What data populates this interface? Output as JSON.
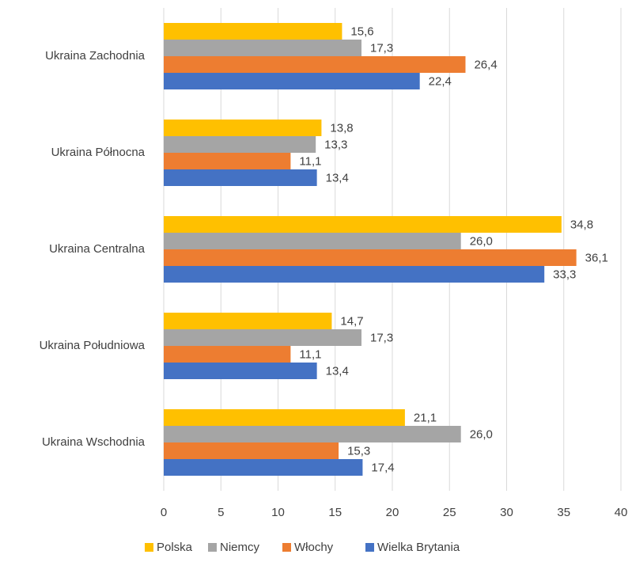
{
  "chart_data": {
    "type": "hbar",
    "categories": [
      "Ukraina Zachodnia",
      "Ukraina Północna",
      "Ukraina Centralna",
      "Ukraina Południowa",
      "Ukraina Wschodnia"
    ],
    "series": [
      {
        "name": "Polska",
        "color": "#FFC000",
        "values": [
          15.6,
          13.8,
          34.8,
          14.7,
          21.1
        ],
        "value_labels": [
          "15,6",
          "13,8",
          "34,8",
          "14,7",
          "21,1"
        ]
      },
      {
        "name": "Niemcy",
        "color": "#A5A5A5",
        "values": [
          17.3,
          13.3,
          26.0,
          17.3,
          26.0
        ],
        "value_labels": [
          "17,3",
          "13,3",
          "26,0",
          "17,3",
          "26,0"
        ]
      },
      {
        "name": "Włochy",
        "color": "#ED7D31",
        "values": [
          26.4,
          11.1,
          36.1,
          11.1,
          15.3
        ],
        "value_labels": [
          "26,4",
          "11,1",
          "36,1",
          "11,1",
          "15,3"
        ]
      },
      {
        "name": "Wielka Brytania",
        "color": "#4472C4",
        "values": [
          22.4,
          13.4,
          33.3,
          13.4,
          17.4
        ],
        "value_labels": [
          "22,4",
          "13,4",
          "33,3",
          "13,4",
          "17,4"
        ]
      }
    ],
    "xlim": [
      0,
      40
    ],
    "xticks": [
      0,
      5,
      10,
      15,
      20,
      25,
      30,
      35,
      40
    ],
    "grid": true,
    "legend": "bottom"
  }
}
